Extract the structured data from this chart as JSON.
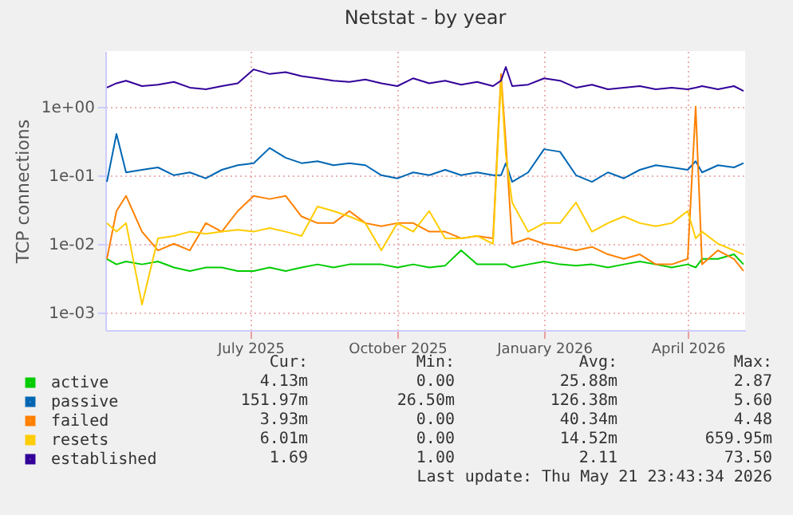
{
  "chart_data": {
    "type": "line",
    "title": "Netstat - by year",
    "ylabel": "TCP connections",
    "log": "y",
    "grid": true,
    "legend": "bottom left",
    "line_style": "solid",
    "xlim": [
      "2025-04-01",
      "2026-05-07"
    ],
    "xticks": [
      {
        "value": "2025-07-01",
        "label": "July 2025"
      },
      {
        "value": "2025-10-01",
        "label": "October 2025"
      },
      {
        "value": "2026-01-01",
        "label": "January 2026"
      },
      {
        "value": "2026-04-01",
        "label": "April 2026"
      }
    ],
    "ylim": [
      0.00055,
      6.5
    ],
    "yticks": [
      {
        "value": 0.001,
        "label": "1e-03"
      },
      {
        "value": 0.01,
        "label": "1e-02"
      },
      {
        "value": 0.1,
        "label": "1e-01"
      },
      {
        "value": 1,
        "label": "1e+00"
      }
    ],
    "x": [
      "2025-04-02",
      "2025-04-08",
      "2025-04-14",
      "2025-04-24",
      "2025-05-04",
      "2025-05-14",
      "2025-05-24",
      "2025-06-03",
      "2025-06-13",
      "2025-06-23",
      "2025-07-03",
      "2025-07-13",
      "2025-07-23",
      "2025-08-02",
      "2025-08-12",
      "2025-08-22",
      "2025-09-01",
      "2025-09-11",
      "2025-09-21",
      "2025-10-01",
      "2025-10-11",
      "2025-10-21",
      "2025-10-31",
      "2025-11-10",
      "2025-11-20",
      "2025-11-30",
      "2025-12-05",
      "2025-12-08",
      "2025-12-12",
      "2025-12-22",
      "2026-01-01",
      "2026-01-11",
      "2026-01-21",
      "2026-01-31",
      "2026-02-10",
      "2026-02-20",
      "2026-03-02",
      "2026-03-12",
      "2026-03-22",
      "2026-04-01",
      "2026-04-06",
      "2026-04-10",
      "2026-04-20",
      "2026-04-30",
      "2026-05-06"
    ],
    "series": [
      {
        "name": "active",
        "color": "#00cc00",
        "values": [
          0.006,
          0.005,
          0.0055,
          0.005,
          0.0055,
          0.0045,
          0.004,
          0.0045,
          0.0045,
          0.004,
          0.004,
          0.0045,
          0.004,
          0.0045,
          0.005,
          0.0045,
          0.005,
          0.005,
          0.005,
          0.0045,
          0.005,
          0.0045,
          0.0048,
          0.008,
          0.005,
          0.005,
          0.005,
          0.005,
          0.0045,
          0.005,
          0.0055,
          0.005,
          0.0048,
          0.005,
          0.0045,
          0.005,
          0.0055,
          0.005,
          0.0045,
          0.005,
          0.0045,
          0.006,
          0.006,
          0.007,
          0.005
        ]
      },
      {
        "name": "passive",
        "color": "#0066b3",
        "values": [
          0.08,
          0.4,
          0.11,
          0.12,
          0.13,
          0.1,
          0.11,
          0.09,
          0.12,
          0.14,
          0.15,
          0.25,
          0.18,
          0.15,
          0.16,
          0.14,
          0.15,
          0.14,
          0.1,
          0.09,
          0.11,
          0.1,
          0.12,
          0.1,
          0.11,
          0.1,
          0.1,
          0.15,
          0.08,
          0.11,
          0.24,
          0.22,
          0.1,
          0.08,
          0.11,
          0.09,
          0.12,
          0.14,
          0.13,
          0.12,
          0.16,
          0.11,
          0.14,
          0.13,
          0.15
        ]
      },
      {
        "name": "failed",
        "color": "#ff8000",
        "values": [
          0.006,
          0.03,
          0.05,
          0.015,
          0.008,
          0.01,
          0.008,
          0.02,
          0.015,
          0.03,
          0.05,
          0.045,
          0.05,
          0.025,
          0.02,
          0.02,
          0.03,
          0.02,
          0.018,
          0.02,
          0.02,
          0.015,
          0.015,
          0.012,
          0.013,
          0.012,
          3.0,
          0.3,
          0.01,
          0.012,
          0.01,
          0.009,
          0.008,
          0.009,
          0.007,
          0.006,
          0.007,
          0.005,
          0.005,
          0.006,
          1.0,
          0.005,
          0.008,
          0.006,
          0.004
        ]
      },
      {
        "name": "resets",
        "color": "#ffcc00",
        "values": [
          0.02,
          0.015,
          0.02,
          0.0013,
          0.012,
          0.013,
          0.015,
          0.014,
          0.015,
          0.016,
          0.015,
          0.017,
          0.015,
          0.013,
          0.035,
          0.03,
          0.025,
          0.02,
          0.008,
          0.02,
          0.015,
          0.03,
          0.012,
          0.012,
          0.013,
          0.01,
          2.5,
          0.2,
          0.04,
          0.015,
          0.02,
          0.02,
          0.04,
          0.015,
          0.02,
          0.025,
          0.02,
          0.018,
          0.02,
          0.03,
          0.012,
          0.015,
          0.01,
          0.008,
          0.007
        ]
      },
      {
        "name": "established",
        "color": "#330099",
        "values": [
          1.9,
          2.2,
          2.4,
          2.0,
          2.1,
          2.3,
          1.9,
          1.8,
          2.0,
          2.2,
          3.5,
          3.0,
          3.2,
          2.8,
          2.6,
          2.4,
          2.3,
          2.5,
          2.2,
          2.0,
          2.6,
          2.2,
          2.4,
          2.1,
          2.3,
          2.0,
          2.4,
          3.8,
          2.0,
          2.1,
          2.6,
          2.4,
          1.9,
          2.1,
          1.8,
          1.9,
          2.0,
          1.8,
          1.9,
          1.8,
          1.9,
          2.0,
          1.8,
          2.0,
          1.7
        ]
      }
    ],
    "annotations": [
      "Cur:",
      "Min:",
      "Avg:",
      "Max:",
      "4.13m",
      "0.00",
      "25.88m",
      "2.87",
      "151.97m",
      "26.50m",
      "126.38m",
      "5.60",
      "3.93m",
      "0.00",
      "40.34m",
      "4.48",
      "6.01m",
      "0.00",
      "14.52m",
      "659.95m",
      "1.69",
      "1.00",
      "2.11",
      "73.50",
      "Last update: Thu May 21 23:43:34 2026"
    ]
  }
}
